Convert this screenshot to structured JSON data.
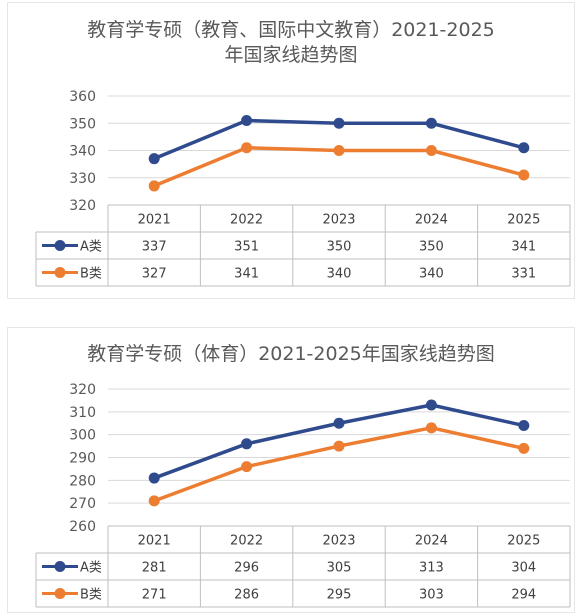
{
  "chart_data": [
    {
      "type": "line",
      "title": "教育学专硕（教育、国际中文教育）2021-2025",
      "subtitle": "年国家线趋势图",
      "categories": [
        "2021",
        "2022",
        "2023",
        "2024",
        "2025"
      ],
      "ylim": [
        320,
        360
      ],
      "yticks": [
        320,
        330,
        340,
        350,
        360
      ],
      "grid": true,
      "legend_placement": "data-table",
      "series": [
        {
          "name": "A类",
          "color": "#2f4b8d",
          "values": [
            337,
            351,
            350,
            350,
            341
          ]
        },
        {
          "name": "B类",
          "color": "#ed7d31",
          "values": [
            327,
            341,
            340,
            340,
            331
          ]
        }
      ]
    },
    {
      "type": "line",
      "title": "教育学专硕（体育）2021-2025年国家线趋势图",
      "categories": [
        "2021",
        "2022",
        "2023",
        "2024",
        "2025"
      ],
      "ylim": [
        260,
        320
      ],
      "yticks": [
        260,
        270,
        280,
        290,
        300,
        310,
        320
      ],
      "grid": true,
      "legend_placement": "data-table",
      "series": [
        {
          "name": "A类",
          "color": "#2f4b8d",
          "values": [
            281,
            296,
            305,
            313,
            304
          ]
        },
        {
          "name": "B类",
          "color": "#ed7d31",
          "values": [
            271,
            286,
            295,
            303,
            294
          ]
        }
      ]
    }
  ]
}
